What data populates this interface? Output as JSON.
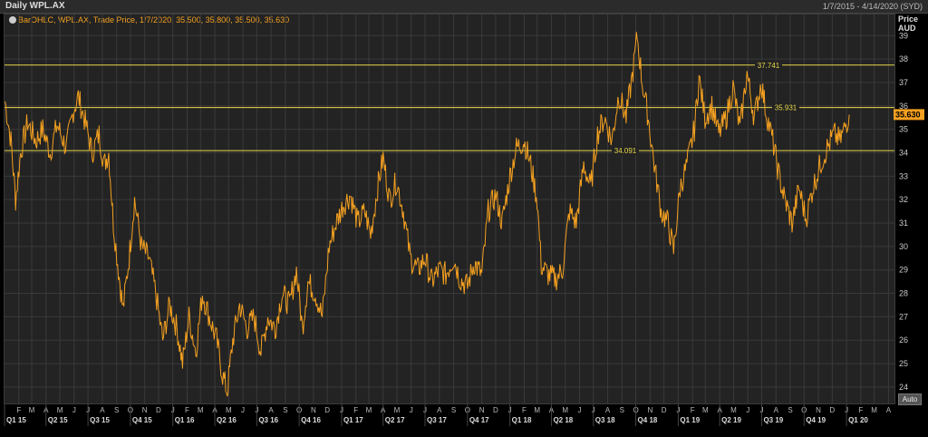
{
  "window": {
    "title": "Daily WPL.AX",
    "date_range": "1/7/2015 - 4/14/2020 (SYD)"
  },
  "legend": {
    "text": "BarOHLC, WPL.AX, Trade Price, 1/7/2020, 35.500, 35.800, 35.500, 35.630"
  },
  "axis": {
    "y_title_1": "Price",
    "y_title_2": "AUD",
    "auto_label": "Auto"
  },
  "chart_data": {
    "type": "line",
    "title": "Daily WPL.AX",
    "ylabel": "Price AUD",
    "ylim": [
      23.3,
      39.9
    ],
    "y_ticks": [
      24,
      25,
      26,
      27,
      28,
      29,
      30,
      31,
      32,
      33,
      34,
      35,
      36,
      37,
      38,
      39
    ],
    "x_range": [
      "2015-01-01",
      "2020-04-14"
    ],
    "month_ticks": [
      {
        "date": "2015-02-01",
        "label": "F"
      },
      {
        "date": "2015-03-01",
        "label": "M"
      },
      {
        "date": "2015-04-01",
        "label": "A"
      },
      {
        "date": "2015-05-01",
        "label": "M"
      },
      {
        "date": "2015-06-01",
        "label": "J"
      },
      {
        "date": "2015-07-01",
        "label": "J"
      },
      {
        "date": "2015-08-01",
        "label": "A"
      },
      {
        "date": "2015-09-01",
        "label": "S"
      },
      {
        "date": "2015-10-01",
        "label": "O"
      },
      {
        "date": "2015-11-01",
        "label": "N"
      },
      {
        "date": "2015-12-01",
        "label": "D"
      },
      {
        "date": "2016-01-01",
        "label": "J"
      },
      {
        "date": "2016-02-01",
        "label": "F"
      },
      {
        "date": "2016-03-01",
        "label": "M"
      },
      {
        "date": "2016-04-01",
        "label": "A"
      },
      {
        "date": "2016-05-01",
        "label": "M"
      },
      {
        "date": "2016-06-01",
        "label": "J"
      },
      {
        "date": "2016-07-01",
        "label": "J"
      },
      {
        "date": "2016-08-01",
        "label": "A"
      },
      {
        "date": "2016-09-01",
        "label": "S"
      },
      {
        "date": "2016-10-01",
        "label": "O"
      },
      {
        "date": "2016-11-01",
        "label": "N"
      },
      {
        "date": "2016-12-01",
        "label": "D"
      },
      {
        "date": "2017-01-01",
        "label": "J"
      },
      {
        "date": "2017-02-01",
        "label": "F"
      },
      {
        "date": "2017-03-01",
        "label": "M"
      },
      {
        "date": "2017-04-01",
        "label": "A"
      },
      {
        "date": "2017-05-01",
        "label": "M"
      },
      {
        "date": "2017-06-01",
        "label": "J"
      },
      {
        "date": "2017-07-01",
        "label": "J"
      },
      {
        "date": "2017-08-01",
        "label": "A"
      },
      {
        "date": "2017-09-01",
        "label": "S"
      },
      {
        "date": "2017-10-01",
        "label": "O"
      },
      {
        "date": "2017-11-01",
        "label": "N"
      },
      {
        "date": "2017-12-01",
        "label": "D"
      },
      {
        "date": "2018-01-01",
        "label": "J"
      },
      {
        "date": "2018-02-01",
        "label": "F"
      },
      {
        "date": "2018-03-01",
        "label": "M"
      },
      {
        "date": "2018-04-01",
        "label": "A"
      },
      {
        "date": "2018-05-01",
        "label": "M"
      },
      {
        "date": "2018-06-01",
        "label": "J"
      },
      {
        "date": "2018-07-01",
        "label": "J"
      },
      {
        "date": "2018-08-01",
        "label": "A"
      },
      {
        "date": "2018-09-01",
        "label": "S"
      },
      {
        "date": "2018-10-01",
        "label": "O"
      },
      {
        "date": "2018-11-01",
        "label": "N"
      },
      {
        "date": "2018-12-01",
        "label": "D"
      },
      {
        "date": "2019-01-01",
        "label": "J"
      },
      {
        "date": "2019-02-01",
        "label": "F"
      },
      {
        "date": "2019-03-01",
        "label": "M"
      },
      {
        "date": "2019-04-01",
        "label": "A"
      },
      {
        "date": "2019-05-01",
        "label": "M"
      },
      {
        "date": "2019-06-01",
        "label": "J"
      },
      {
        "date": "2019-07-01",
        "label": "J"
      },
      {
        "date": "2019-08-01",
        "label": "A"
      },
      {
        "date": "2019-09-01",
        "label": "S"
      },
      {
        "date": "2019-10-01",
        "label": "O"
      },
      {
        "date": "2019-11-01",
        "label": "N"
      },
      {
        "date": "2019-12-01",
        "label": "D"
      },
      {
        "date": "2020-01-01",
        "label": "J"
      },
      {
        "date": "2020-02-01",
        "label": "F"
      },
      {
        "date": "2020-03-01",
        "label": "M"
      },
      {
        "date": "2020-04-01",
        "label": "A"
      }
    ],
    "quarter_labels": [
      {
        "date": "2015-01-01",
        "label": "Q1 15"
      },
      {
        "date": "2015-04-01",
        "label": "Q2 15"
      },
      {
        "date": "2015-07-01",
        "label": "Q3 15"
      },
      {
        "date": "2015-10-01",
        "label": "Q4 15"
      },
      {
        "date": "2016-01-01",
        "label": "Q1 16"
      },
      {
        "date": "2016-04-01",
        "label": "Q2 16"
      },
      {
        "date": "2016-07-01",
        "label": "Q3 16"
      },
      {
        "date": "2016-10-01",
        "label": "Q4 16"
      },
      {
        "date": "2017-01-01",
        "label": "Q1 17"
      },
      {
        "date": "2017-04-01",
        "label": "Q2 17"
      },
      {
        "date": "2017-07-01",
        "label": "Q3 17"
      },
      {
        "date": "2017-10-01",
        "label": "Q4 17"
      },
      {
        "date": "2018-01-01",
        "label": "Q1 18"
      },
      {
        "date": "2018-04-01",
        "label": "Q2 18"
      },
      {
        "date": "2018-07-01",
        "label": "Q3 18"
      },
      {
        "date": "2018-10-01",
        "label": "Q4 18"
      },
      {
        "date": "2019-01-01",
        "label": "Q1 19"
      },
      {
        "date": "2019-04-01",
        "label": "Q2 19"
      },
      {
        "date": "2019-07-01",
        "label": "Q3 19"
      },
      {
        "date": "2019-10-01",
        "label": "Q4 19"
      },
      {
        "date": "2020-01-01",
        "label": "Q1 20"
      }
    ],
    "series": [
      {
        "name": "WPL.AX",
        "color": "#f4a020",
        "points": [
          [
            "2015-01-02",
            36.2
          ],
          [
            "2015-01-15",
            34.5
          ],
          [
            "2015-01-25",
            32.0
          ],
          [
            "2015-02-05",
            34.0
          ],
          [
            "2015-02-20",
            35.3
          ],
          [
            "2015-03-10",
            34.5
          ],
          [
            "2015-03-25",
            35.0
          ],
          [
            "2015-04-10",
            34.0
          ],
          [
            "2015-04-25",
            35.2
          ],
          [
            "2015-05-15",
            34.2
          ],
          [
            "2015-05-30",
            35.8
          ],
          [
            "2015-06-10",
            36.4
          ],
          [
            "2015-06-25",
            35.3
          ],
          [
            "2015-07-10",
            34.0
          ],
          [
            "2015-07-25",
            34.8
          ],
          [
            "2015-08-05",
            33.5
          ],
          [
            "2015-08-15",
            34.0
          ],
          [
            "2015-08-25",
            31.0
          ],
          [
            "2015-09-05",
            29.0
          ],
          [
            "2015-09-15",
            27.3
          ],
          [
            "2015-09-28",
            29.5
          ],
          [
            "2015-10-10",
            32.0
          ],
          [
            "2015-10-25",
            30.0
          ],
          [
            "2015-11-10",
            29.5
          ],
          [
            "2015-11-25",
            28.0
          ],
          [
            "2015-12-10",
            26.0
          ],
          [
            "2015-12-25",
            27.5
          ],
          [
            "2016-01-10",
            26.5
          ],
          [
            "2016-01-22",
            25.0
          ],
          [
            "2016-02-05",
            27.0
          ],
          [
            "2016-02-20",
            25.5
          ],
          [
            "2016-03-05",
            28.0
          ],
          [
            "2016-03-20",
            27.0
          ],
          [
            "2016-04-05",
            26.0
          ],
          [
            "2016-04-18",
            24.5
          ],
          [
            "2016-04-28",
            23.8
          ],
          [
            "2016-05-10",
            26.0
          ],
          [
            "2016-05-25",
            27.5
          ],
          [
            "2016-06-10",
            26.5
          ],
          [
            "2016-06-25",
            27.0
          ],
          [
            "2016-07-10",
            25.5
          ],
          [
            "2016-07-25",
            27.0
          ],
          [
            "2016-08-10",
            26.5
          ],
          [
            "2016-08-25",
            28.0
          ],
          [
            "2016-09-10",
            27.5
          ],
          [
            "2016-09-25",
            29.0
          ],
          [
            "2016-10-08",
            26.5
          ],
          [
            "2016-10-20",
            28.5
          ],
          [
            "2016-11-05",
            28.0
          ],
          [
            "2016-11-20",
            27.0
          ],
          [
            "2016-12-05",
            30.0
          ],
          [
            "2016-12-20",
            31.0
          ],
          [
            "2017-01-05",
            31.8
          ],
          [
            "2017-01-20",
            32.2
          ],
          [
            "2017-02-05",
            31.0
          ],
          [
            "2017-02-20",
            31.5
          ],
          [
            "2017-03-05",
            30.5
          ],
          [
            "2017-03-20",
            32.5
          ],
          [
            "2017-04-01",
            33.8
          ],
          [
            "2017-04-15",
            32.0
          ],
          [
            "2017-04-30",
            32.8
          ],
          [
            "2017-05-15",
            31.5
          ],
          [
            "2017-05-30",
            29.5
          ],
          [
            "2017-06-15",
            29.0
          ],
          [
            "2017-07-01",
            29.5
          ],
          [
            "2017-07-15",
            28.5
          ],
          [
            "2017-08-01",
            29.0
          ],
          [
            "2017-08-15",
            28.8
          ],
          [
            "2017-09-01",
            29.5
          ],
          [
            "2017-09-15",
            28.6
          ],
          [
            "2017-10-01",
            28.3
          ],
          [
            "2017-10-15",
            29.3
          ],
          [
            "2017-11-01",
            28.8
          ],
          [
            "2017-11-15",
            31.5
          ],
          [
            "2017-12-01",
            32.2
          ],
          [
            "2017-12-15",
            31.0
          ],
          [
            "2018-01-01",
            33.0
          ],
          [
            "2018-01-15",
            34.2
          ],
          [
            "2018-02-01",
            34.5
          ],
          [
            "2018-02-15",
            33.5
          ],
          [
            "2018-03-01",
            32.0
          ],
          [
            "2018-03-10",
            29.2
          ],
          [
            "2018-03-25",
            28.8
          ],
          [
            "2018-04-10",
            28.6
          ],
          [
            "2018-04-25",
            29.0
          ],
          [
            "2018-05-10",
            31.5
          ],
          [
            "2018-05-25",
            31.0
          ],
          [
            "2018-06-10",
            33.5
          ],
          [
            "2018-06-25",
            32.5
          ],
          [
            "2018-07-10",
            34.8
          ],
          [
            "2018-07-25",
            35.5
          ],
          [
            "2018-08-10",
            34.5
          ],
          [
            "2018-08-25",
            36.5
          ],
          [
            "2018-09-10",
            35.5
          ],
          [
            "2018-09-25",
            37.5
          ],
          [
            "2018-10-04",
            39.0
          ],
          [
            "2018-10-15",
            37.0
          ],
          [
            "2018-10-28",
            35.5
          ],
          [
            "2018-11-10",
            33.5
          ],
          [
            "2018-11-25",
            31.5
          ],
          [
            "2018-12-10",
            31.0
          ],
          [
            "2018-12-22",
            29.8
          ],
          [
            "2019-01-05",
            32.5
          ],
          [
            "2019-01-20",
            33.5
          ],
          [
            "2019-02-05",
            35.0
          ],
          [
            "2019-02-15",
            37.2
          ],
          [
            "2019-02-28",
            35.5
          ],
          [
            "2019-03-15",
            36.0
          ],
          [
            "2019-03-30",
            34.8
          ],
          [
            "2019-04-15",
            35.5
          ],
          [
            "2019-04-30",
            36.8
          ],
          [
            "2019-05-15",
            35.0
          ],
          [
            "2019-05-30",
            37.4
          ],
          [
            "2019-06-15",
            35.5
          ],
          [
            "2019-06-30",
            37.0
          ],
          [
            "2019-07-10",
            35.8
          ],
          [
            "2019-07-25",
            34.5
          ],
          [
            "2019-08-08",
            33.0
          ],
          [
            "2019-08-20",
            32.0
          ],
          [
            "2019-09-05",
            31.0
          ],
          [
            "2019-09-20",
            32.5
          ],
          [
            "2019-10-05",
            31.2
          ],
          [
            "2019-10-20",
            32.5
          ],
          [
            "2019-11-05",
            33.5
          ],
          [
            "2019-11-20",
            34.2
          ],
          [
            "2019-12-05",
            34.8
          ],
          [
            "2019-12-18",
            34.5
          ],
          [
            "2020-01-07",
            35.63
          ]
        ]
      }
    ],
    "reference_lines": [
      {
        "value": 37.741,
        "label": "37.741"
      },
      {
        "value": 35.931,
        "label": "35.931"
      },
      {
        "value": 34.091,
        "label": "34.091"
      }
    ],
    "last_price": {
      "value": 35.63,
      "label": "35.630"
    },
    "grid": true,
    "colors": {
      "line": "#f4a020",
      "reference": "#e8d84a",
      "last_price_tag": "#f4a020"
    }
  }
}
